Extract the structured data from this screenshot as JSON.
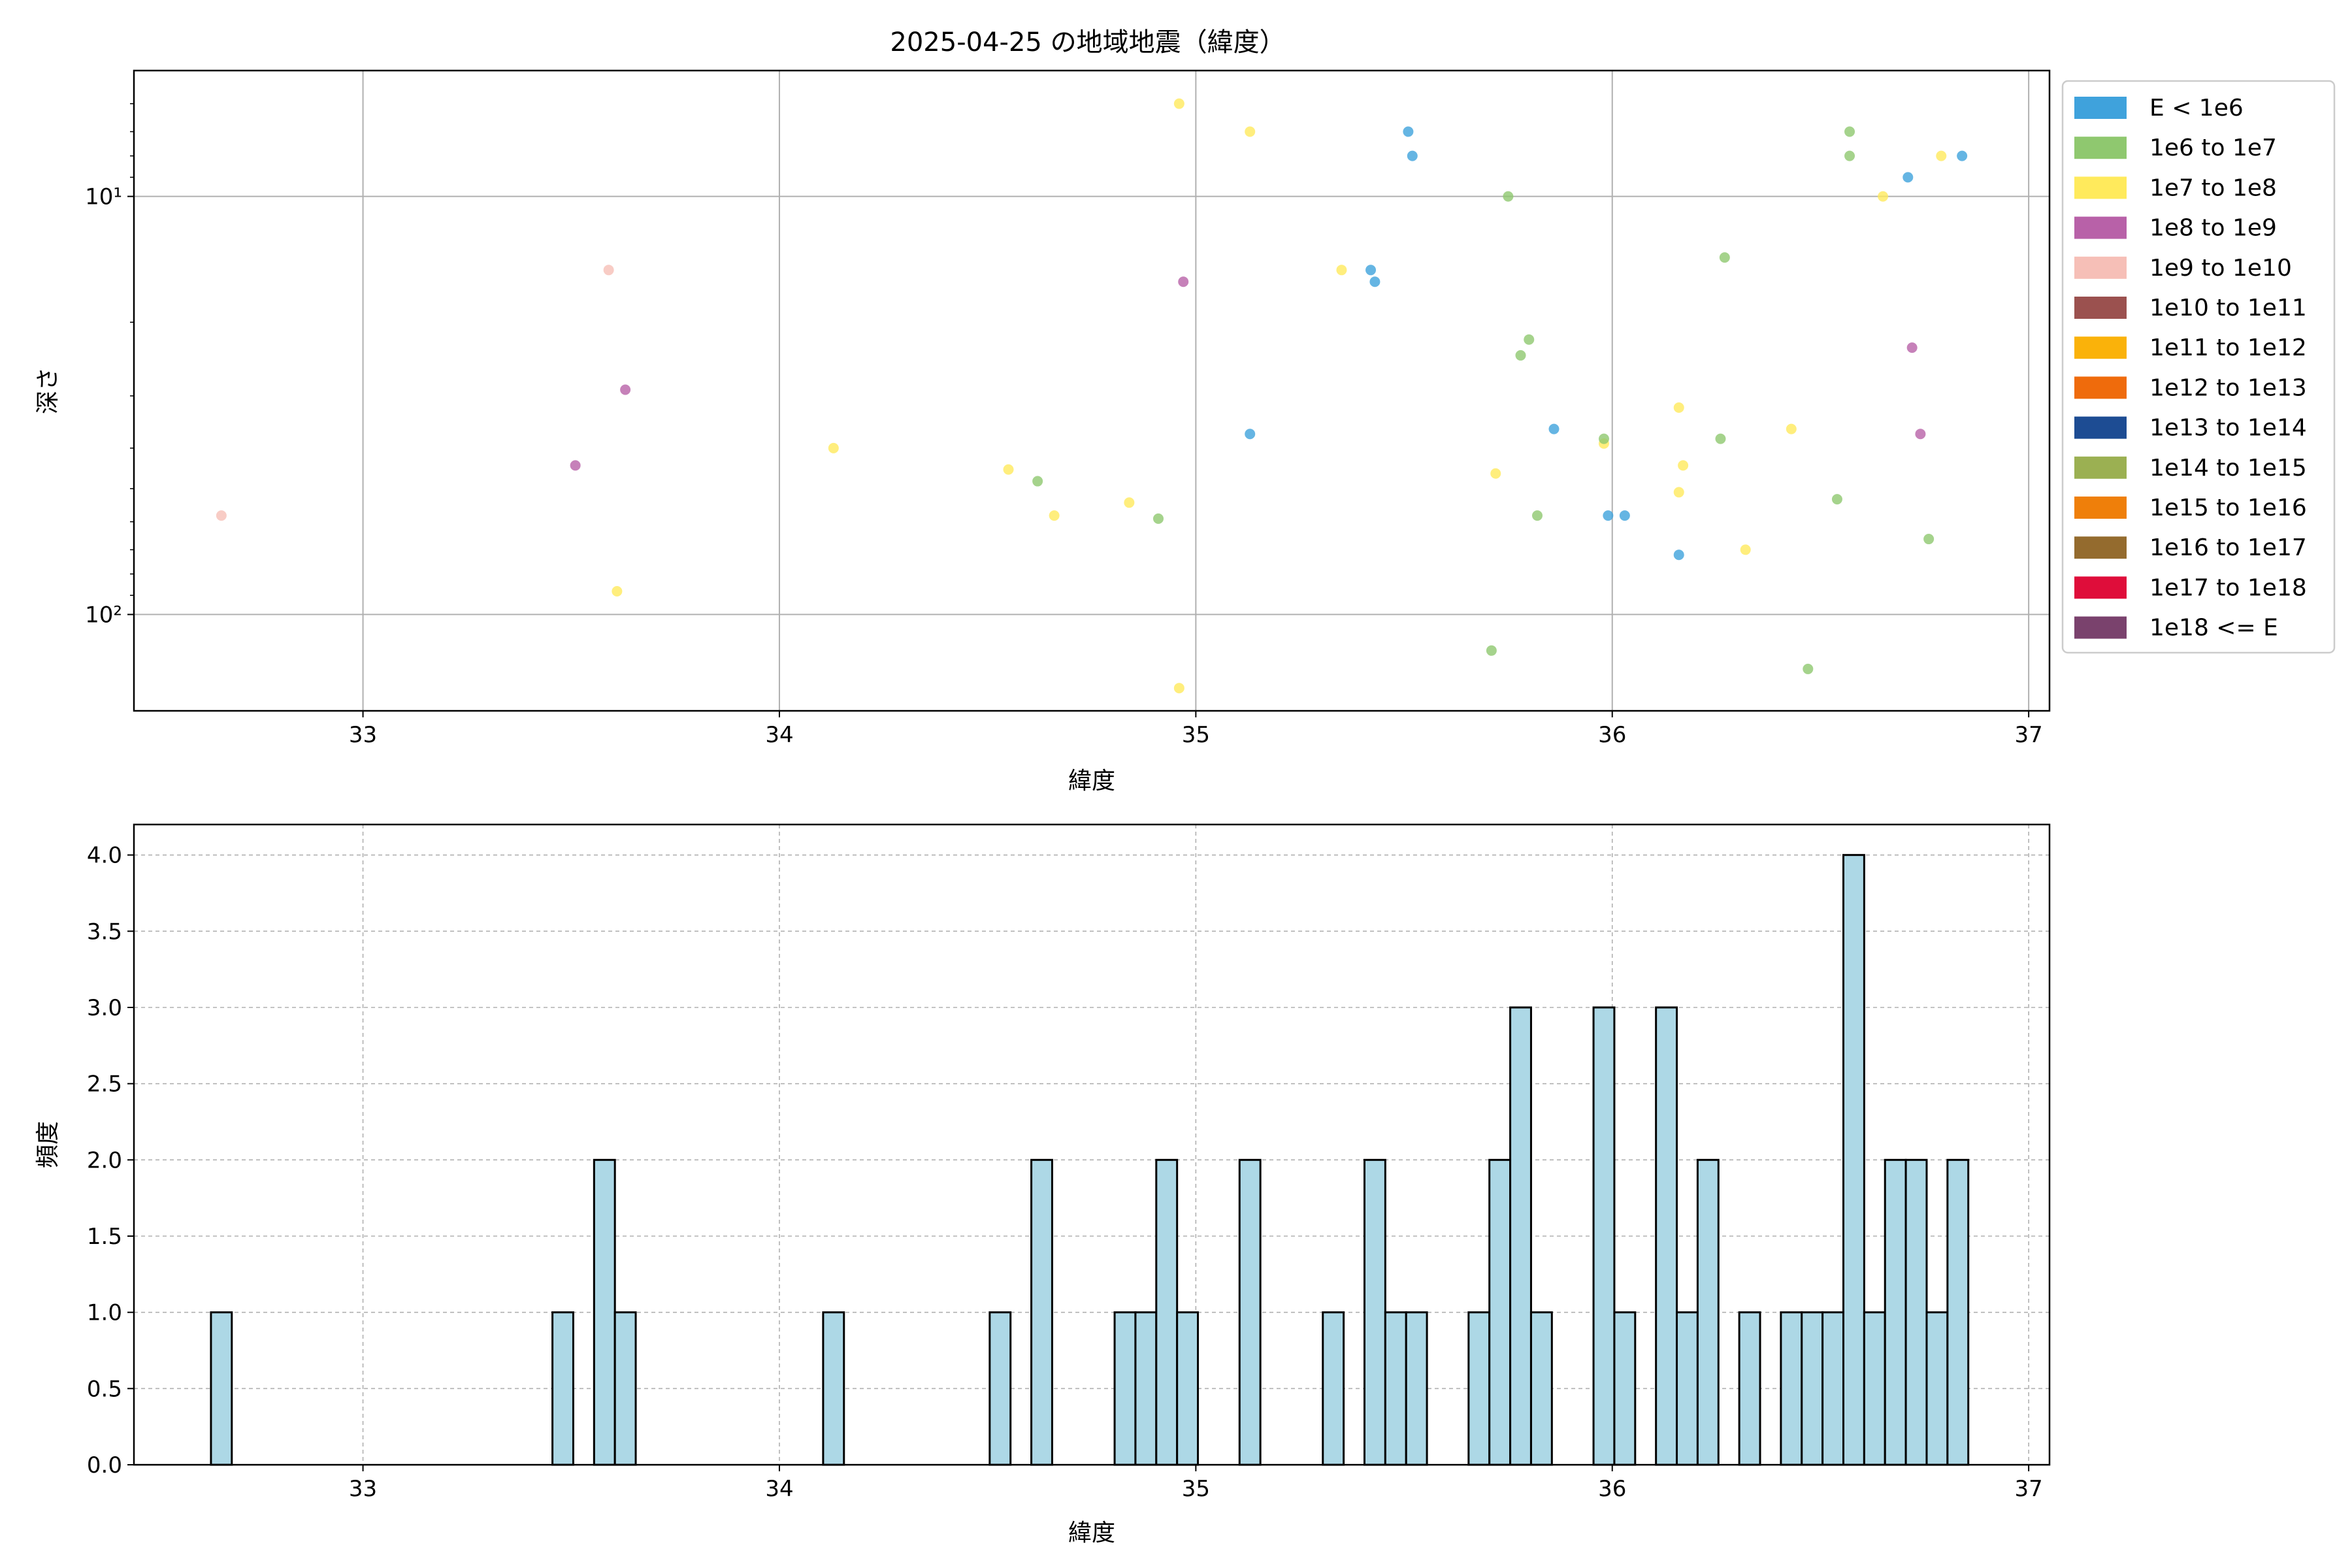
{
  "chart_data": [
    {
      "type": "scatter",
      "title": "2025-04-25 の地域地震（緯度）",
      "xlabel": "緯度",
      "ylabel": "深さ",
      "xlim": [
        32.45,
        37.05
      ],
      "ylim": [
        170,
        5
      ],
      "yscale": "log",
      "y_inverted": true,
      "xticks": [
        33,
        34,
        35,
        36,
        37
      ],
      "xtick_labels": [
        "33",
        "34",
        "35",
        "36",
        "37"
      ],
      "yticks": [
        10,
        100
      ],
      "ytick_labels": [
        "10¹",
        "10²"
      ],
      "grid": true,
      "legend_position": "outside-right",
      "legend": [
        {
          "label": "E < 1e6",
          "color": "#3fa2dc"
        },
        {
          "label": "1e6 to 1e7",
          "color": "#8fc86f"
        },
        {
          "label": "1e7 to 1e8",
          "color": "#ffea5c"
        },
        {
          "label": "1e8 to 1e9",
          "color": "#b861a8"
        },
        {
          "label": "1e9 to 1e10",
          "color": "#f6bfb7"
        },
        {
          "label": "1e10 to 1e11",
          "color": "#9b514f"
        },
        {
          "label": "1e11 to 1e12",
          "color": "#fab20a"
        },
        {
          "label": "1e12 to 1e13",
          "color": "#ef6b0c"
        },
        {
          "label": "1e13 to 1e14",
          "color": "#1d4c93"
        },
        {
          "label": "1e14 to 1e15",
          "color": "#9bb052"
        },
        {
          "label": "1e15 to 1e16",
          "color": "#ef7f0a"
        },
        {
          "label": "1e16 to 1e17",
          "color": "#946b2e"
        },
        {
          "label": "1e17 to 1e18",
          "color": "#df0d3a"
        },
        {
          "label": "1e18 <= E",
          "color": "#7a426d"
        }
      ],
      "points": [
        {
          "x": 33.61,
          "y": 88,
          "c": 2
        },
        {
          "x": 34.96,
          "y": 6,
          "c": 2
        },
        {
          "x": 35.13,
          "y": 7,
          "c": 2
        },
        {
          "x": 34.13,
          "y": 40,
          "c": 2
        },
        {
          "x": 34.55,
          "y": 45,
          "c": 2
        },
        {
          "x": 34.66,
          "y": 58,
          "c": 2
        },
        {
          "x": 34.84,
          "y": 54,
          "c": 2
        },
        {
          "x": 34.96,
          "y": 150,
          "c": 2
        },
        {
          "x": 35.35,
          "y": 15,
          "c": 2
        },
        {
          "x": 35.72,
          "y": 46,
          "c": 2
        },
        {
          "x": 35.98,
          "y": 39,
          "c": 2
        },
        {
          "x": 36.16,
          "y": 32,
          "c": 2
        },
        {
          "x": 36.17,
          "y": 44,
          "c": 2
        },
        {
          "x": 36.16,
          "y": 51,
          "c": 2
        },
        {
          "x": 36.32,
          "y": 70,
          "c": 2
        },
        {
          "x": 36.43,
          "y": 36,
          "c": 2
        },
        {
          "x": 36.65,
          "y": 10,
          "c": 2
        },
        {
          "x": 36.79,
          "y": 8,
          "c": 2
        },
        {
          "x": 35.51,
          "y": 7,
          "c": 0
        },
        {
          "x": 35.52,
          "y": 8,
          "c": 0
        },
        {
          "x": 35.42,
          "y": 15,
          "c": 0
        },
        {
          "x": 35.43,
          "y": 16,
          "c": 0
        },
        {
          "x": 35.13,
          "y": 37,
          "c": 0
        },
        {
          "x": 35.86,
          "y": 36,
          "c": 0
        },
        {
          "x": 35.99,
          "y": 58,
          "c": 0
        },
        {
          "x": 36.03,
          "y": 58,
          "c": 0
        },
        {
          "x": 36.16,
          "y": 72,
          "c": 0
        },
        {
          "x": 36.71,
          "y": 9,
          "c": 0
        },
        {
          "x": 36.84,
          "y": 8,
          "c": 0
        },
        {
          "x": 35.75,
          "y": 10,
          "c": 1
        },
        {
          "x": 35.8,
          "y": 22,
          "c": 1
        },
        {
          "x": 35.78,
          "y": 24,
          "c": 1
        },
        {
          "x": 35.98,
          "y": 38,
          "c": 1
        },
        {
          "x": 36.27,
          "y": 14,
          "c": 1
        },
        {
          "x": 36.26,
          "y": 38,
          "c": 1
        },
        {
          "x": 36.57,
          "y": 7,
          "c": 1
        },
        {
          "x": 36.57,
          "y": 8,
          "c": 1
        },
        {
          "x": 36.54,
          "y": 53,
          "c": 1
        },
        {
          "x": 36.76,
          "y": 66,
          "c": 1
        },
        {
          "x": 35.82,
          "y": 58,
          "c": 1
        },
        {
          "x": 35.71,
          "y": 122,
          "c": 1
        },
        {
          "x": 36.47,
          "y": 135,
          "c": 1
        },
        {
          "x": 34.62,
          "y": 48,
          "c": 1
        },
        {
          "x": 34.91,
          "y": 59,
          "c": 1
        },
        {
          "x": 33.51,
          "y": 44,
          "c": 3
        },
        {
          "x": 33.63,
          "y": 29,
          "c": 3
        },
        {
          "x": 34.97,
          "y": 16,
          "c": 3
        },
        {
          "x": 36.72,
          "y": 23,
          "c": 3
        },
        {
          "x": 36.74,
          "y": 37,
          "c": 3
        },
        {
          "x": 32.66,
          "y": 58,
          "c": 4
        },
        {
          "x": 33.59,
          "y": 15,
          "c": 4
        }
      ]
    },
    {
      "type": "bar",
      "title": "",
      "xlabel": "緯度",
      "ylabel": "頻度",
      "xlim": [
        32.45,
        37.05
      ],
      "ylim": [
        0,
        4.2
      ],
      "xticks": [
        33,
        34,
        35,
        36,
        37
      ],
      "xtick_labels": [
        "33",
        "34",
        "35",
        "36",
        "37"
      ],
      "yticks": [
        0,
        0.5,
        1.0,
        1.5,
        2.0,
        2.5,
        3.0,
        3.5,
        4.0
      ],
      "ytick_labels": [
        "0.0",
        "0.5",
        "1.0",
        "1.5",
        "2.0",
        "2.5",
        "3.0",
        "3.5",
        "4.0"
      ],
      "grid": true,
      "bin_width": 0.05,
      "bar_color": "#add8e6",
      "bins": [
        {
          "x": 32.66,
          "v": 1
        },
        {
          "x": 33.48,
          "v": 1
        },
        {
          "x": 33.58,
          "v": 2
        },
        {
          "x": 33.63,
          "v": 1
        },
        {
          "x": 34.13,
          "v": 1
        },
        {
          "x": 34.53,
          "v": 1
        },
        {
          "x": 34.63,
          "v": 2
        },
        {
          "x": 34.83,
          "v": 1
        },
        {
          "x": 34.88,
          "v": 1
        },
        {
          "x": 34.93,
          "v": 2
        },
        {
          "x": 34.98,
          "v": 1
        },
        {
          "x": 35.13,
          "v": 2
        },
        {
          "x": 35.33,
          "v": 1
        },
        {
          "x": 35.43,
          "v": 2
        },
        {
          "x": 35.48,
          "v": 1
        },
        {
          "x": 35.53,
          "v": 1
        },
        {
          "x": 35.68,
          "v": 1
        },
        {
          "x": 35.73,
          "v": 2
        },
        {
          "x": 35.78,
          "v": 3
        },
        {
          "x": 35.83,
          "v": 1
        },
        {
          "x": 35.98,
          "v": 3
        },
        {
          "x": 36.03,
          "v": 1
        },
        {
          "x": 36.13,
          "v": 3
        },
        {
          "x": 36.18,
          "v": 1
        },
        {
          "x": 36.23,
          "v": 2
        },
        {
          "x": 36.33,
          "v": 1
        },
        {
          "x": 36.43,
          "v": 1
        },
        {
          "x": 36.48,
          "v": 1
        },
        {
          "x": 36.53,
          "v": 1
        },
        {
          "x": 36.58,
          "v": 4
        },
        {
          "x": 36.63,
          "v": 1
        },
        {
          "x": 36.68,
          "v": 2
        },
        {
          "x": 36.73,
          "v": 2
        },
        {
          "x": 36.78,
          "v": 1
        },
        {
          "x": 36.83,
          "v": 2
        }
      ]
    }
  ]
}
